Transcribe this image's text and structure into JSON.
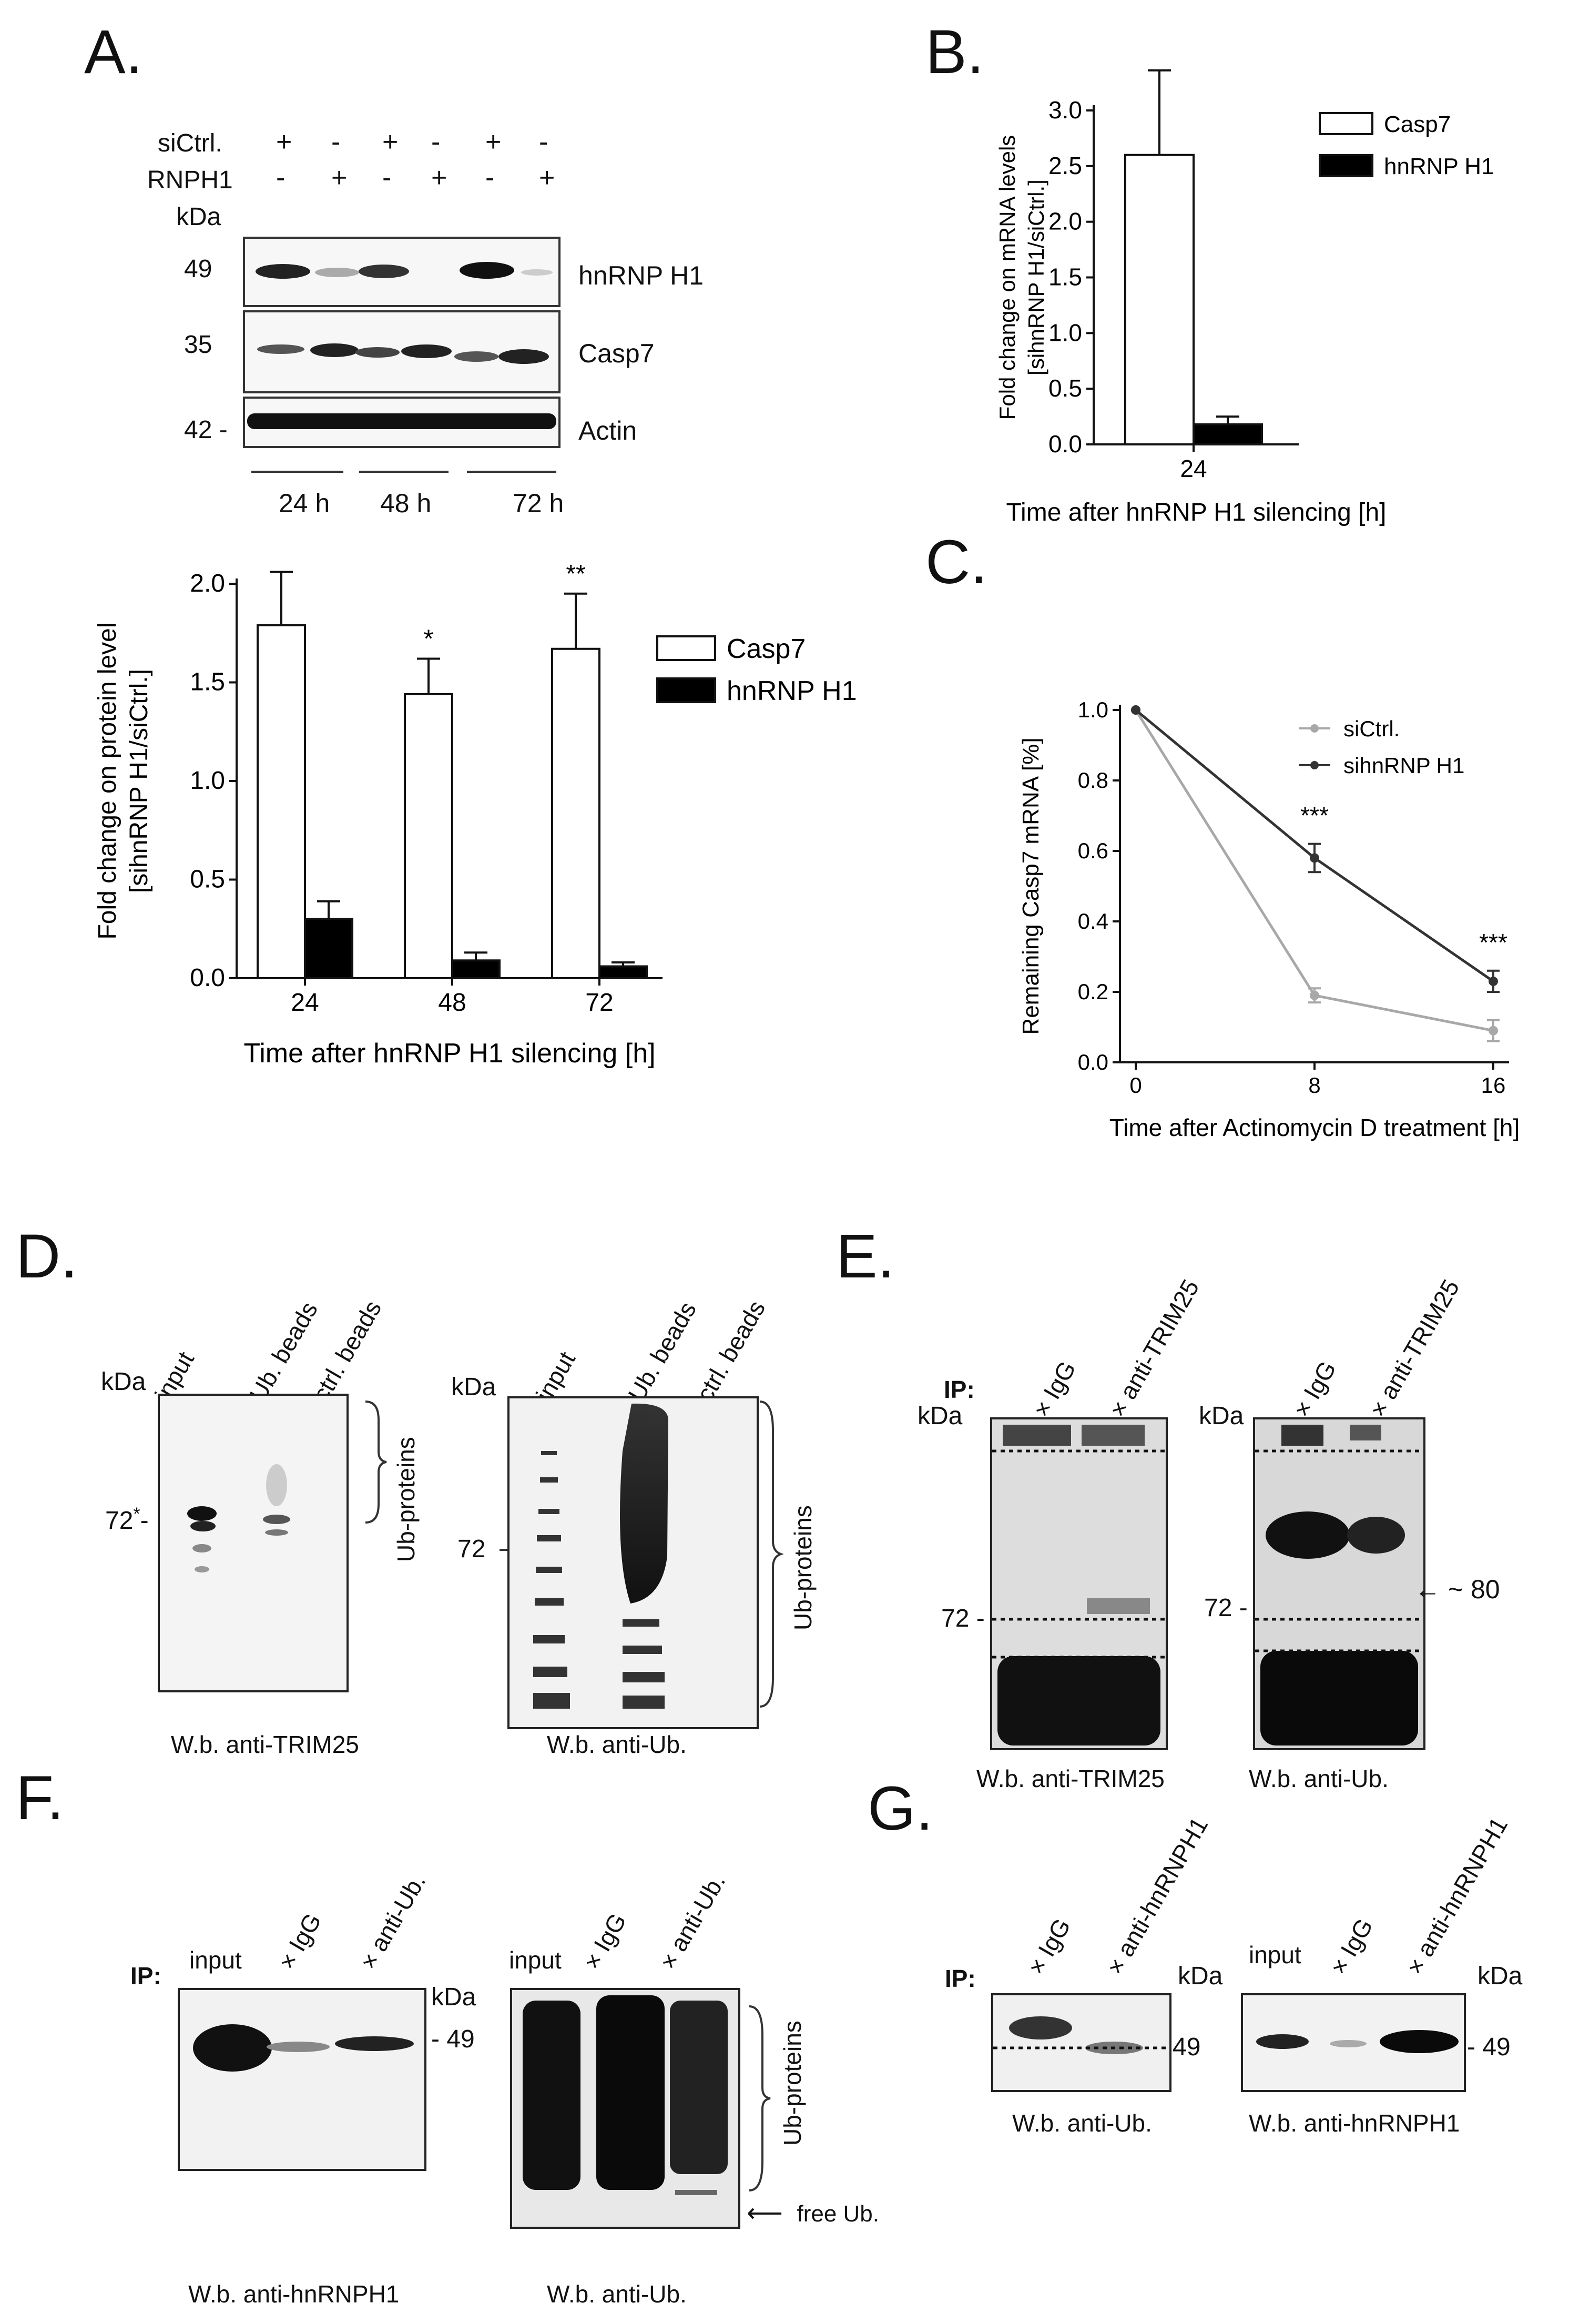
{
  "panels": {
    "A": "A.",
    "B": "B.",
    "C": "C.",
    "D": "D.",
    "E": "E.",
    "F": "F.",
    "G": "G."
  },
  "panelA": {
    "row_labels": [
      "siCtrl.",
      "RNPH1"
    ],
    "sign_rows": [
      [
        "+",
        "-",
        "+",
        "-",
        "+",
        "-"
      ],
      [
        "-",
        "+",
        "-",
        "+",
        "-",
        "+"
      ]
    ],
    "kda": "kDa",
    "markers": [
      "49",
      "35",
      "42 -"
    ],
    "bands": [
      "hnRNP H1",
      "Casp7",
      "Actin"
    ],
    "times": [
      "24 h",
      "48 h",
      "72 h"
    ]
  },
  "chart_data": [
    {
      "panel": "A",
      "type": "bar",
      "categories": [
        "24",
        "48",
        "72"
      ],
      "series": [
        {
          "name": "Casp7",
          "values": [
            1.79,
            1.44,
            1.67
          ],
          "errors": [
            0.27,
            0.18,
            0.28
          ],
          "color": "#ffffff"
        },
        {
          "name": "hnRNP H1",
          "values": [
            0.3,
            0.09,
            0.06
          ],
          "errors": [
            0.09,
            0.04,
            0.02
          ],
          "color": "#000000"
        }
      ],
      "significance": [
        "**",
        "*",
        "**"
      ],
      "xlabel": "Time after hnRNP H1 silencing [h]",
      "ylabel": [
        "Fold change on protein level",
        "[sihnRNP H1/siCtrl.]"
      ],
      "ylim": [
        0,
        2.0
      ],
      "yticks": [
        "0.0",
        "0.5",
        "1.0",
        "1.5",
        "2.0"
      ],
      "legend_position": "right"
    },
    {
      "panel": "B",
      "type": "bar",
      "categories": [
        "24"
      ],
      "series": [
        {
          "name": "Casp7",
          "values": [
            2.6
          ],
          "errors": [
            0.76
          ],
          "color": "#ffffff"
        },
        {
          "name": "hnRNP H1",
          "values": [
            0.18
          ],
          "errors": [
            0.07
          ],
          "color": "#000000"
        }
      ],
      "significance": [
        "*"
      ],
      "xlabel": "Time after hnRNP H1 silencing [h]",
      "ylabel": [
        "Fold change on mRNA levels",
        "[sihnRNP H1/siCtrl.]"
      ],
      "ylim": [
        0,
        3.0
      ],
      "yticks": [
        "0.0",
        "0.5",
        "1.0",
        "1.5",
        "2.0",
        "2.5",
        "3.0"
      ],
      "legend_position": "right"
    },
    {
      "panel": "C",
      "type": "line",
      "x": [
        0,
        8,
        16
      ],
      "xticks": [
        "0",
        "8",
        "16"
      ],
      "series": [
        {
          "name": "siCtrl.",
          "values": [
            1.0,
            0.19,
            0.09
          ],
          "errors": [
            0.0,
            0.02,
            0.03
          ],
          "color": "#a8a8a8"
        },
        {
          "name": "sihnRNP H1",
          "values": [
            1.0,
            0.58,
            0.23
          ],
          "errors": [
            0.0,
            0.04,
            0.03
          ],
          "color": "#333333"
        }
      ],
      "significance": [
        "",
        "***",
        "***"
      ],
      "xlabel": "Time after Actinomycin D treatment [h]",
      "ylabel": "Remaining Casp7 mRNA [%]",
      "ylim": [
        0,
        1.0
      ],
      "yticks": [
        "0.0",
        "0.2",
        "0.4",
        "0.6",
        "0.8",
        "1.0"
      ],
      "legend_position": "top-right"
    }
  ],
  "panelD": {
    "kda": "kDa",
    "left_lanes": [
      "input",
      "Ub. beads",
      "ctrl. beads"
    ],
    "right_lanes": [
      "input",
      "Ub. beads",
      "ctrl. beads"
    ],
    "left_marker": "72",
    "left_marker_star": "*",
    "right_marker": "72",
    "bracket_label": "Ub-proteins",
    "left_caption": "W.b. anti-TRIM25",
    "right_caption": "W.b. anti-Ub."
  },
  "panelE": {
    "ip": "IP:",
    "kda": "kDa",
    "lanes": [
      "IgG",
      "anti-TRIM25"
    ],
    "marker": "72 -",
    "arrow_label": "~ 80",
    "left_caption": "W.b. anti-TRIM25",
    "right_caption": "W.b. anti-Ub."
  },
  "panelF": {
    "ip": "IP:",
    "kda": "kDa",
    "left_lanes": [
      "input",
      "IgG",
      "anti-Ub."
    ],
    "right_lanes": [
      "input",
      "IgG",
      "anti-Ub."
    ],
    "marker": "49",
    "bracket_label": "Ub-proteins",
    "free_label": "free Ub.",
    "left_caption": "W.b. anti-hnRNPH1",
    "right_caption": "W.b. anti-Ub."
  },
  "panelG": {
    "ip": "IP:",
    "kda": "kDa",
    "left_lanes": [
      "IgG",
      "anti-hnRNPH1"
    ],
    "right_lanes": [
      "input",
      "IgG",
      "anti-hnRNPH1"
    ],
    "marker_left": "49",
    "marker_right": "- 49",
    "left_caption": "W.b. anti-Ub.",
    "right_caption": "W.b. anti-hnRNPH1"
  }
}
